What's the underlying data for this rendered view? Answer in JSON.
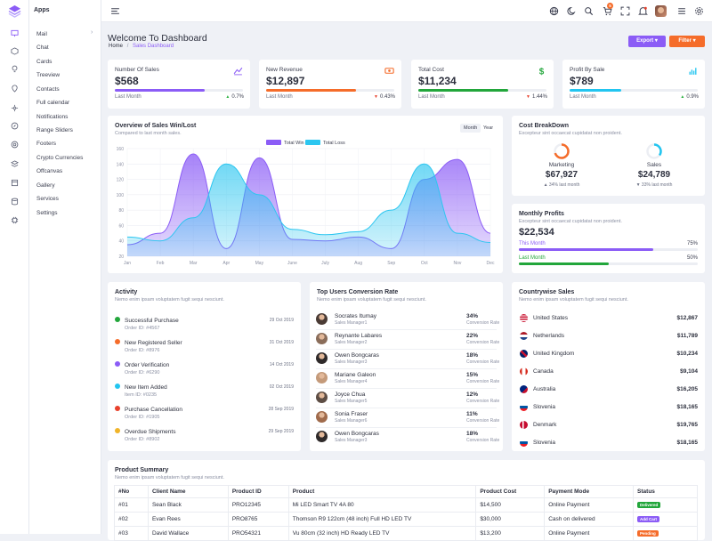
{
  "sidebar": {
    "apps_label": "Apps",
    "items": [
      {
        "label": "Mail"
      },
      {
        "label": "Chat"
      },
      {
        "label": "Cards"
      },
      {
        "label": "Treeview"
      },
      {
        "label": "Contacts"
      },
      {
        "label": "Full calendar"
      },
      {
        "label": "Notifications"
      },
      {
        "label": "Range Sliders"
      },
      {
        "label": "Footers"
      },
      {
        "label": "Crypto Currencies"
      },
      {
        "label": "Offcanvas"
      },
      {
        "label": "Gallery"
      },
      {
        "label": "Services"
      },
      {
        "label": "Settings"
      }
    ],
    "rail_icons": [
      "layers-logo-icon",
      "monitor-icon",
      "box-icon",
      "lightbulb-icon",
      "map-pin-icon",
      "settings-icon",
      "compass-icon",
      "aperture-icon",
      "layers-icon",
      "package-icon",
      "book-icon",
      "database-icon",
      "cpu-icon"
    ]
  },
  "header": {
    "cart_count": "5",
    "icons": [
      "menu-icon",
      "globe-icon",
      "moon-icon",
      "search-icon",
      "cart-icon",
      "fullscreen-icon",
      "bell-icon",
      "avatar",
      "list-icon",
      "gear-icon"
    ]
  },
  "page": {
    "title": "Welcome To Dashboard",
    "breadcrumb_home": "Home",
    "breadcrumb_sep": "/",
    "breadcrumb_current": "Sales Dashboard",
    "export_label": "Export ▾",
    "filter_label": "Filter ▾"
  },
  "stats": [
    {
      "label": "Number Of Sales",
      "value": "$568",
      "sub": "Last Month",
      "pct": "0.7%",
      "arrow": "▲",
      "arrow_color": "#2fb344",
      "bar_color": "#8b5cf6",
      "bar_fill": 0.7,
      "icon": "chart-line-icon"
    },
    {
      "label": "New Revenue",
      "value": "$12,897",
      "sub": "Last Month",
      "pct": "0.43%",
      "arrow": "▼",
      "arrow_color": "#e8412c",
      "bar_color": "#f56c2a",
      "bar_fill": 0.7,
      "icon": "money-icon"
    },
    {
      "label": "Total Cost",
      "value": "$11,234",
      "sub": "Last Month",
      "pct": "1.44%",
      "arrow": "▼",
      "arrow_color": "#e8412c",
      "bar_color": "#22a63b",
      "bar_fill": 0.7,
      "icon": "dollar-icon"
    },
    {
      "label": "Profit By Sale",
      "value": "$789",
      "sub": "Last Month",
      "pct": "0.9%",
      "arrow": "▲",
      "arrow_color": "#2fb344",
      "bar_color": "#22c5f0",
      "bar_fill": 0.4,
      "icon": "chart-bars-icon"
    }
  ],
  "overview": {
    "title": "Overview of Sales Win/Lost",
    "subtitle": "Compared to last month sales.",
    "tab_month": "Month",
    "tab_year": "Year"
  },
  "chart_data": {
    "type": "area",
    "categories": [
      "Jan",
      "Feb",
      "Mar",
      "Apr",
      "May",
      "June",
      "July",
      "Aug",
      "Sep",
      "Oct",
      "Nov",
      "Dec"
    ],
    "ylim": [
      20,
      160
    ],
    "yticks": [
      20,
      40,
      60,
      80,
      100,
      120,
      140,
      160
    ],
    "grid": true,
    "legend_position": "top",
    "series": [
      {
        "name": "Total Win",
        "color": "#8b5cf6",
        "values": [
          35,
          50,
          153,
          30,
          148,
          42,
          40,
          45,
          30,
          120,
          146,
          50
        ]
      },
      {
        "name": "Total Loss",
        "color": "#2cc6f0",
        "values": [
          45,
          40,
          70,
          140,
          100,
          55,
          48,
          52,
          80,
          140,
          50,
          38
        ]
      }
    ]
  },
  "cost_breakdown": {
    "title": "Cost BreakDown",
    "subtitle": "Excepteur sint occaecat cupidatat non proident.",
    "items": [
      {
        "label": "Marketing",
        "value": "$67,927",
        "sub": "▲ 34% last month",
        "color": "#f56c2a",
        "fill": 0.7
      },
      {
        "label": "Sales",
        "value": "$24,789",
        "sub": "▼ 33% last month",
        "color": "#22c5f0",
        "fill": 0.35
      }
    ]
  },
  "monthly_profits": {
    "title": "Monthly Profits",
    "subtitle": "Excepteur sint occaecat cupidatat non proident.",
    "value": "$22,534",
    "rows": [
      {
        "label": "This Month",
        "pct": "75%",
        "fill": 0.75,
        "color": "#8b5cf6"
      },
      {
        "label": "Last Month",
        "pct": "50%",
        "fill": 0.5,
        "color": "#22a63b"
      }
    ]
  },
  "activity": {
    "title": "Activity",
    "subtitle": "Nemo enim ipsam voluptatem fugit sequi nesciunt.",
    "items": [
      {
        "title": "Successful Purchase",
        "sub": "Order ID: #4567",
        "date": "29 Oct 2019",
        "color": "#22a63b"
      },
      {
        "title": "New Registered Seller",
        "sub": "Order ID: #8976",
        "date": "31 Oct 2019",
        "color": "#f56c2a"
      },
      {
        "title": "Order Verification",
        "sub": "Order ID: #6290",
        "date": "14 Oct 2019",
        "color": "#8b5cf6"
      },
      {
        "title": "New Item Added",
        "sub": "Item ID: #0235",
        "date": "02 Oct 2019",
        "color": "#22c5f0"
      },
      {
        "title": "Purchase Cancellation",
        "sub": "Order ID: #1905",
        "date": "28 Sep 2019",
        "color": "#e8412c"
      },
      {
        "title": "Overdue Shipments",
        "sub": "Order ID: #8902",
        "date": "29 Sep 2019",
        "color": "#f0b429"
      }
    ]
  },
  "top_users": {
    "title": "Top Users Conversion Rate",
    "subtitle": "Nemo enim ipsam voluptatem fugit sequi nesciunt.",
    "items": [
      {
        "name": "Socrates Itumay",
        "role": "Sales Manager1",
        "pct": "34%",
        "cr": "Conversion Rate"
      },
      {
        "name": "Reynante Labares",
        "role": "Sales Manager2",
        "pct": "22%",
        "cr": "Conversion Rate"
      },
      {
        "name": "Owen Bongcaras",
        "role": "Sales Manager3",
        "pct": "18%",
        "cr": "Conversion Rate"
      },
      {
        "name": "Mariane Galeon",
        "role": "Sales Manager4",
        "pct": "15%",
        "cr": "Conversion Rate"
      },
      {
        "name": "Joyce Chua",
        "role": "Sales Manager5",
        "pct": "12%",
        "cr": "Conversion Rate"
      },
      {
        "name": "Sonia Fraser",
        "role": "Sales Manager6",
        "pct": "11%",
        "cr": "Conversion Rate"
      },
      {
        "name": "Owen Bongcaras",
        "role": "Sales Manager3",
        "pct": "18%",
        "cr": "Conversion Rate"
      }
    ]
  },
  "countries": {
    "title": "Countrywise Sales",
    "subtitle": "Nemo enim ipsam voluptatem fugit sequi nesciunt.",
    "items": [
      {
        "name": "United States",
        "value": "$12,867",
        "flag": "us"
      },
      {
        "name": "Netherlands",
        "value": "$11,789",
        "flag": "nl"
      },
      {
        "name": "United Kingdom",
        "value": "$10,234",
        "flag": "uk"
      },
      {
        "name": "Canada",
        "value": "$9,104",
        "flag": "ca"
      },
      {
        "name": "Australia",
        "value": "$16,205",
        "flag": "au"
      },
      {
        "name": "Slovenia",
        "value": "$18,165",
        "flag": "si"
      },
      {
        "name": "Denmark",
        "value": "$19,765",
        "flag": "dk"
      },
      {
        "name": "Slovenia",
        "value": "$18,165",
        "flag": "si"
      }
    ]
  },
  "products": {
    "title": "Product Summary",
    "subtitle": "Nemo enim ipsam voluptatem fugit sequi nesciunt.",
    "columns": [
      "#No",
      "Client Name",
      "Product ID",
      "Product",
      "Product Cost",
      "Payment Mode",
      "Status"
    ],
    "rows": [
      {
        "no": "#01",
        "client": "Sean Black",
        "pid": "PRO12345",
        "product": "Mi LED Smart TV 4A 80",
        "cost": "$14,500",
        "mode": "Online Payment",
        "status": "Delivered",
        "status_color": "#22a63b"
      },
      {
        "no": "#02",
        "client": "Evan Rees",
        "pid": "PRO8765",
        "product": "Thomson R9 122cm (48 inch) Full HD LED TV",
        "cost": "$30,000",
        "mode": "Cash on delivered",
        "status": "Add Cart",
        "status_color": "#8b5cf6"
      },
      {
        "no": "#03",
        "client": "David Wallace",
        "pid": "PRO54321",
        "product": "Vu 80cm (32 inch) HD Ready LED TV",
        "cost": "$13,200",
        "mode": "Online Payment",
        "status": "Pending",
        "status_color": "#f56c2a"
      }
    ]
  }
}
